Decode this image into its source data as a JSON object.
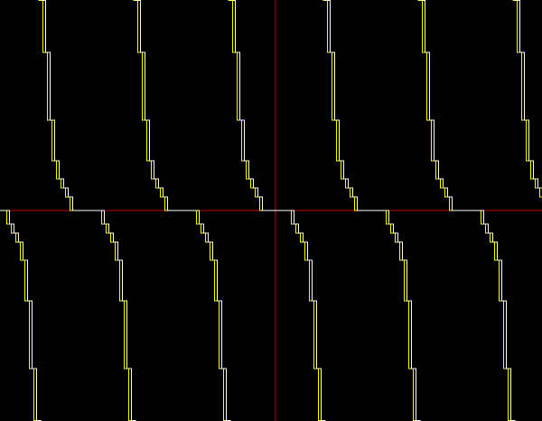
{
  "chart_data": {
    "type": "line",
    "title": "",
    "xlabel": "",
    "ylabel": "",
    "xlim": [
      -12.2,
      11.8
    ],
    "ylim": [
      -9.32,
      9.32
    ],
    "grid": false,
    "legend": "none",
    "axes": {
      "show": true,
      "color": "#cc0000"
    },
    "colors": {
      "background": "#000000",
      "axis": "#cc0000",
      "series_yellow": "#ffff00",
      "series_white": "#ffffff"
    },
    "series": [
      {
        "color": "#ffff00",
        "period": 4.2,
        "phase": 0,
        "description_of_shape": "tan-like step curve",
        "x": [
          -2.1,
          -1.9,
          -1.7,
          -1.5,
          -1.3,
          -1.1,
          -0.9,
          -0.7,
          -0.5,
          -0.3,
          -0.1,
          0.0,
          0.1,
          0.3,
          0.5,
          0.7,
          0.9,
          1.1,
          1.3,
          1.5,
          1.7,
          1.9,
          2.1
        ],
        "y": [
          9.3,
          7.0,
          4.0,
          2.2,
          1.4,
          1.0,
          0.6,
          0.0,
          0.0,
          0.0,
          0.0,
          0.0,
          0.0,
          0.0,
          0.0,
          -0.6,
          -1.0,
          -1.4,
          -2.2,
          -4.0,
          -7.0,
          -9.3,
          -9.3
        ]
      },
      {
        "color": "#ffffff",
        "period": 4.2,
        "phase": 0.12,
        "x": [
          -2.1,
          -1.9,
          -1.7,
          -1.5,
          -1.3,
          -1.1,
          -0.9,
          -0.7,
          -0.5,
          -0.3,
          -0.1,
          0.0,
          0.1,
          0.3,
          0.5,
          0.7,
          0.9,
          1.1,
          1.3,
          1.5,
          1.7,
          1.9,
          2.1
        ],
        "y": [
          9.3,
          7.0,
          4.0,
          2.2,
          1.4,
          1.0,
          0.6,
          0.0,
          0.0,
          0.0,
          0.0,
          0.0,
          0.0,
          0.0,
          0.0,
          -0.6,
          -1.0,
          -1.4,
          -2.2,
          -4.0,
          -7.0,
          -9.3,
          -9.3
        ]
      }
    ]
  }
}
